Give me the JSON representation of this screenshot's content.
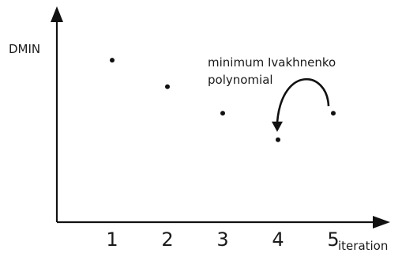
{
  "chart_data": {
    "type": "scatter",
    "title": "",
    "xlabel": "iteration",
    "ylabel": "DMIN",
    "x": [
      1,
      2,
      3,
      4,
      5
    ],
    "y": [
      0.72,
      0.54,
      0.36,
      0.18,
      0.36
    ],
    "tick_labels": [
      "1",
      "2",
      "3",
      "4",
      "5"
    ],
    "xlim": [
      0,
      6
    ],
    "ylim": [
      -0.38,
      1.0
    ],
    "grid": false,
    "legend": "none",
    "annotation": {
      "lines": [
        "minimum Ivakhnenko",
        "polynomial"
      ],
      "arrow_from_x": 5,
      "arrow_to_x": 4
    },
    "colors": {
      "axis": "#111111",
      "points": "#111111",
      "text": "#1a1a1a"
    }
  }
}
